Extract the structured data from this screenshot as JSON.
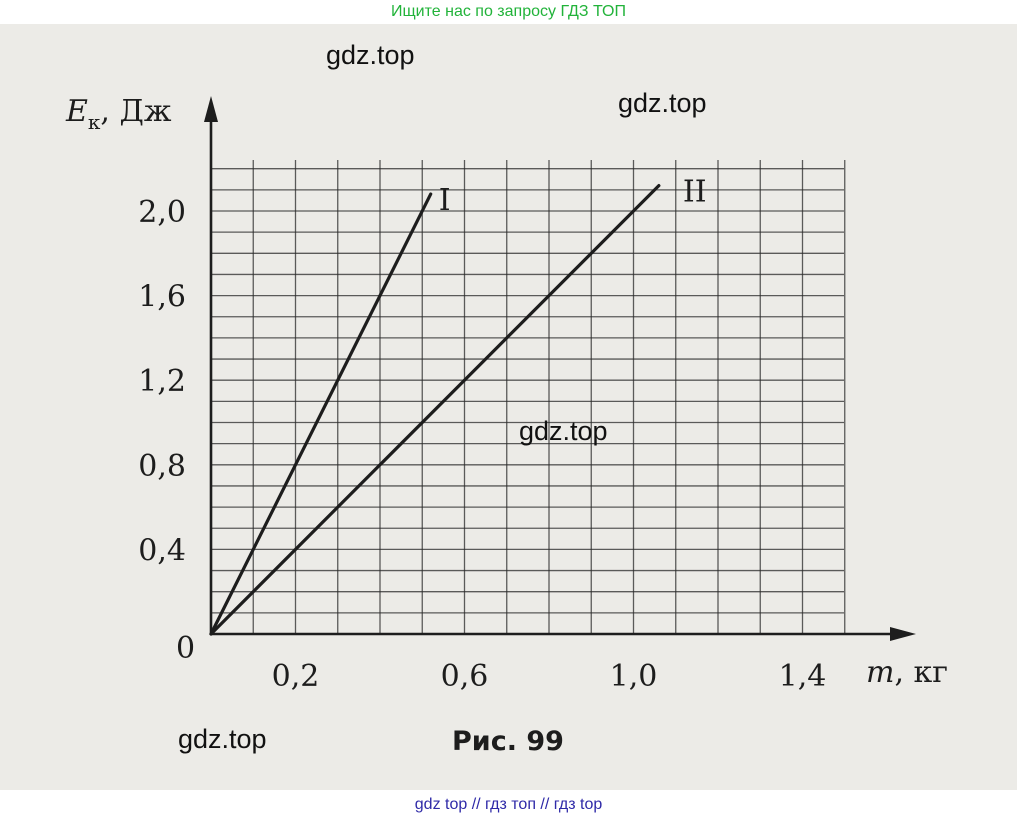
{
  "banner_top": "Ищите нас по запросу ГДЗ ТОП",
  "banner_bottom": "gdz top  //  гдз топ  //  гдз top",
  "watermarks": [
    "gdz.top",
    "gdz.top",
    "gdz.top",
    "gdz.top"
  ],
  "colors": {
    "top_banner_text": "#22b33a",
    "bottom_banner_text": "#2f2aa8",
    "paper": "#ecebe7",
    "grid": "#2a2a2a",
    "ink": "#1d1d1d"
  },
  "chart_data": {
    "type": "line",
    "title": "",
    "caption": "Рис. 99",
    "ylabel": {
      "main": "E",
      "sub": "к",
      "unit": ", Дж"
    },
    "xlabel": {
      "main": "m",
      "unit": ", кг"
    },
    "xlim": [
      0,
      1.6
    ],
    "ylim": [
      0,
      2.0
    ],
    "origin_label": "0",
    "x_tick_labels": [
      {
        "value": 0.2,
        "label": "0,2"
      },
      {
        "value": 0.6,
        "label": "0,6"
      },
      {
        "value": 1.0,
        "label": "1,0"
      },
      {
        "value": 1.4,
        "label": "1,4"
      }
    ],
    "y_tick_labels": [
      {
        "value": 0.4,
        "label": "0,4"
      },
      {
        "value": 0.8,
        "label": "0,8"
      },
      {
        "value": 1.2,
        "label": "1,2"
      },
      {
        "value": 1.6,
        "label": "1,6"
      },
      {
        "value": 2.0,
        "label": "2,0"
      }
    ],
    "grid": true,
    "grid_step": {
      "x": 0.1,
      "y": 0.2
    },
    "series": [
      {
        "name": "I",
        "x": [
          0,
          0.52
        ],
        "y": [
          0,
          2.08
        ]
      },
      {
        "name": "II",
        "x": [
          0,
          1.06
        ],
        "y": [
          0,
          2.12
        ]
      }
    ]
  }
}
